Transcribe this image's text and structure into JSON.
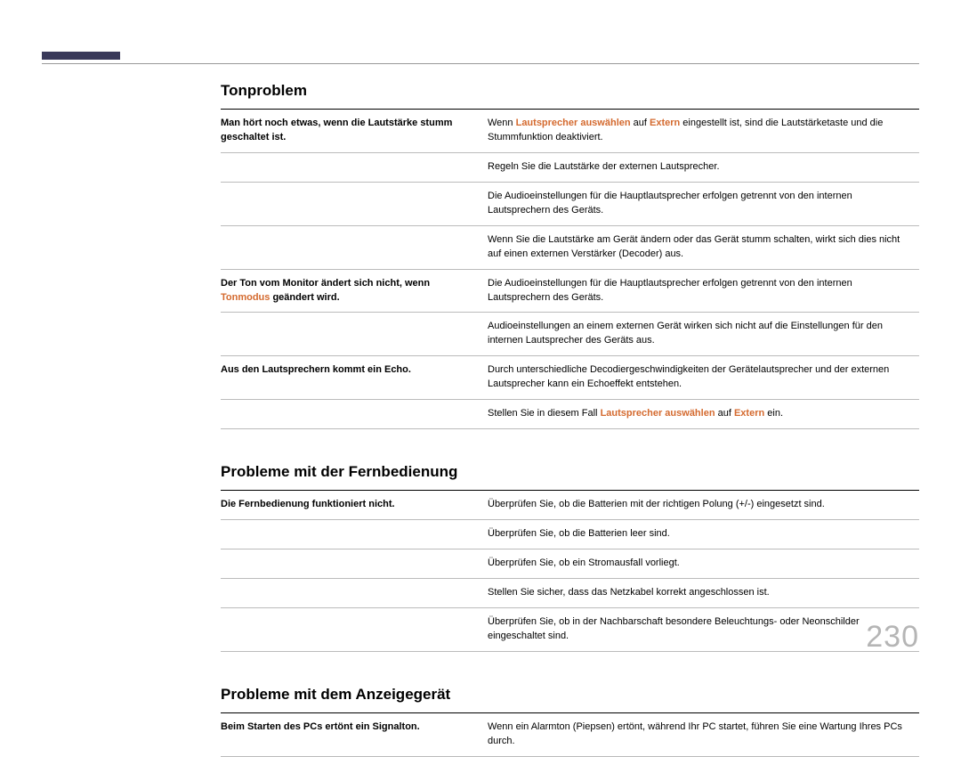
{
  "pageNumber": "230",
  "sections": [
    {
      "title": "Tonproblem",
      "rows": [
        {
          "leftSegments": [
            {
              "text": "Man hört noch etwas, wenn die Lautstärke stumm geschaltet ist.",
              "cls": ""
            }
          ],
          "rightSegments": [
            {
              "text": "Wenn ",
              "cls": "muted"
            },
            {
              "text": "Lautsprecher auswählen",
              "cls": "highlight"
            },
            {
              "text": " auf ",
              "cls": "muted"
            },
            {
              "text": "Extern",
              "cls": "highlight"
            },
            {
              "text": " eingestellt ist, sind die Lautstärketaste und die Stummfunktion deaktiviert.",
              "cls": "muted"
            }
          ]
        },
        {
          "leftSegments": [],
          "rightSegments": [
            {
              "text": "Regeln Sie die Lautstärke der externen Lautsprecher.",
              "cls": "muted"
            }
          ]
        },
        {
          "leftSegments": [],
          "rightSegments": [
            {
              "text": "Die Audioeinstellungen für die Hauptlautsprecher erfolgen getrennt von den internen Lautsprechern des Geräts.",
              "cls": "muted"
            }
          ]
        },
        {
          "leftSegments": [],
          "rightSegments": [
            {
              "text": "Wenn Sie die Lautstärke am Gerät ändern oder das Gerät stumm schalten, wirkt sich dies nicht auf einen externen Verstärker (Decoder) aus.",
              "cls": "muted"
            }
          ]
        },
        {
          "leftSegments": [
            {
              "text": "Der Ton vom Monitor ändert sich nicht, wenn ",
              "cls": ""
            },
            {
              "text": "Tonmodus",
              "cls": "highlight"
            },
            {
              "text": " geändert wird.",
              "cls": ""
            }
          ],
          "rightSegments": [
            {
              "text": "Die Audioeinstellungen für die Hauptlautsprecher erfolgen getrennt von den internen Lautsprechern des Geräts.",
              "cls": "muted"
            }
          ]
        },
        {
          "leftSegments": [],
          "rightSegments": [
            {
              "text": "Audioeinstellungen an einem externen Gerät wirken sich nicht auf die Einstellungen für den internen Lautsprecher des Geräts aus.",
              "cls": "muted"
            }
          ]
        },
        {
          "leftSegments": [
            {
              "text": "Aus den Lautsprechern kommt ein Echo.",
              "cls": ""
            }
          ],
          "rightSegments": [
            {
              "text": "Durch unterschiedliche Decodiergeschwindigkeiten der Gerätelautsprecher und der externen Lautsprecher kann ein Echoeffekt entstehen.",
              "cls": "muted"
            }
          ]
        },
        {
          "leftSegments": [],
          "rightSegments": [
            {
              "text": "Stellen Sie in diesem Fall ",
              "cls": "muted"
            },
            {
              "text": "Lautsprecher auswählen",
              "cls": "highlight"
            },
            {
              "text": " auf ",
              "cls": "muted"
            },
            {
              "text": "Extern",
              "cls": "highlight"
            },
            {
              "text": " ein.",
              "cls": "muted"
            }
          ]
        }
      ]
    },
    {
      "title": "Probleme mit der Fernbedienung",
      "rows": [
        {
          "leftSegments": [
            {
              "text": "Die Fernbedienung funktioniert nicht.",
              "cls": ""
            }
          ],
          "rightSegments": [
            {
              "text": "Überprüfen Sie, ob die Batterien mit der richtigen Polung (+/-) eingesetzt sind.",
              "cls": "muted"
            }
          ]
        },
        {
          "leftSegments": [],
          "rightSegments": [
            {
              "text": "Überprüfen Sie, ob die Batterien leer sind.",
              "cls": "muted"
            }
          ]
        },
        {
          "leftSegments": [],
          "rightSegments": [
            {
              "text": "Überprüfen Sie, ob ein Stromausfall vorliegt.",
              "cls": "muted"
            }
          ]
        },
        {
          "leftSegments": [],
          "rightSegments": [
            {
              "text": "Stellen Sie sicher, dass das Netzkabel korrekt angeschlossen ist.",
              "cls": "muted"
            }
          ]
        },
        {
          "leftSegments": [],
          "rightSegments": [
            {
              "text": "Überprüfen Sie, ob in der Nachbarschaft besondere Beleuchtungs- oder Neonschilder eingeschaltet sind.",
              "cls": "muted"
            }
          ]
        }
      ]
    },
    {
      "title": "Probleme mit dem Anzeigegerät",
      "rows": [
        {
          "leftSegments": [
            {
              "text": "Beim Starten des PCs ertönt ein Signalton.",
              "cls": ""
            }
          ],
          "rightSegments": [
            {
              "text": "Wenn ein Alarmton (Piepsen) ertönt, während Ihr PC startet, führen Sie eine Wartung Ihres PCs durch.",
              "cls": "muted"
            }
          ]
        }
      ]
    }
  ]
}
